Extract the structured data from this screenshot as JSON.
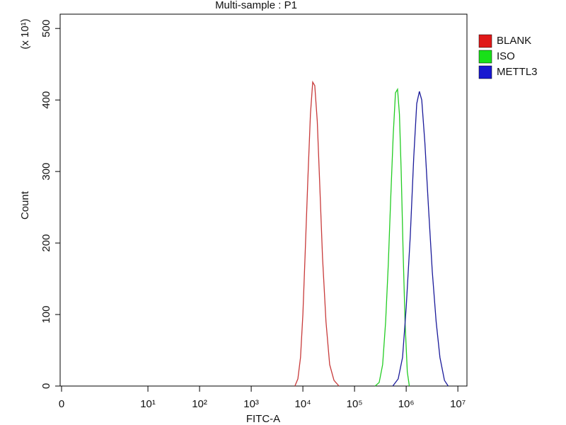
{
  "chart_data": {
    "type": "histogram-overlay",
    "title": "Multi-sample : P1",
    "x_label": "FITC-A",
    "y_label": "Count",
    "y_unit": "(x 10¹)",
    "xscale": "biexponential",
    "xlim": [
      0,
      15000000
    ],
    "xticks": [
      0,
      {
        "value": 10,
        "label": "10¹"
      },
      {
        "value": 100,
        "label": "10²"
      },
      {
        "value": 1000,
        "label": "10³"
      },
      {
        "value": 10000,
        "label": "10⁴"
      },
      {
        "value": 100000,
        "label": "10⁵"
      },
      {
        "value": 1000000,
        "label": "10⁶"
      },
      {
        "value": 10000000,
        "label": "10⁷"
      }
    ],
    "ylim": [
      0,
      520
    ],
    "yticks": [
      0,
      100,
      200,
      300,
      400,
      500
    ],
    "legend": "right",
    "series": [
      {
        "name": "BLANK",
        "color": "#e01818",
        "line_color": "#c83a3a",
        "x": [
          7000,
          8000,
          9000,
          10000,
          11000,
          12500,
          14000,
          15500,
          17000,
          19000,
          21000,
          24000,
          28000,
          33000,
          40000,
          50000
        ],
        "values": [
          0,
          10,
          40,
          100,
          180,
          290,
          380,
          425,
          420,
          370,
          290,
          180,
          90,
          30,
          8,
          0
        ]
      },
      {
        "name": "ISO",
        "color": "#18e018",
        "line_color": "#22cc22",
        "x": [
          250000,
          300000,
          350000,
          400000,
          450000,
          500000,
          560000,
          620000,
          680000,
          740000,
          800000,
          870000,
          950000,
          1050000,
          1150000
        ],
        "values": [
          0,
          5,
          30,
          90,
          170,
          260,
          350,
          410,
          415,
          380,
          300,
          190,
          90,
          20,
          0
        ]
      },
      {
        "name": "METTL3",
        "color": "#1818d0",
        "line_color": "#1a1a9a",
        "x": [
          550000,
          700000,
          850000,
          1000000,
          1200000,
          1400000,
          1600000,
          1800000,
          2000000,
          2300000,
          2700000,
          3200000,
          3800000,
          4500000,
          5500000,
          6500000
        ],
        "values": [
          0,
          10,
          40,
          110,
          210,
          320,
          395,
          412,
          400,
          340,
          250,
          160,
          90,
          40,
          8,
          0
        ]
      }
    ]
  }
}
